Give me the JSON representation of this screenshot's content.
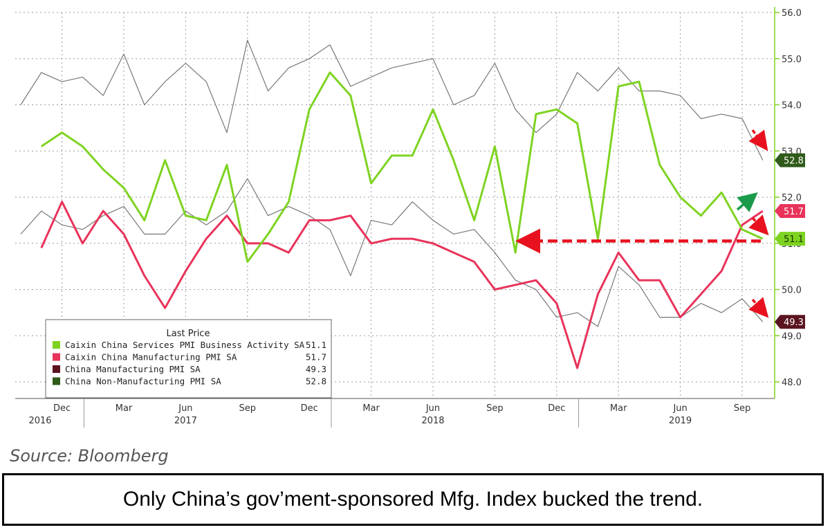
{
  "chart_data": {
    "type": "line",
    "title": "",
    "x": [
      "2016-10",
      "2016-11",
      "2016-12",
      "2017-01",
      "2017-02",
      "2017-03",
      "2017-04",
      "2017-05",
      "2017-06",
      "2017-07",
      "2017-08",
      "2017-09",
      "2017-10",
      "2017-11",
      "2017-12",
      "2018-01",
      "2018-02",
      "2018-03",
      "2018-04",
      "2018-05",
      "2018-06",
      "2018-07",
      "2018-08",
      "2018-09",
      "2018-10",
      "2018-11",
      "2018-12",
      "2019-01",
      "2019-02",
      "2019-03",
      "2019-04",
      "2019-05",
      "2019-06",
      "2019-07",
      "2019-08",
      "2019-09",
      "2019-10"
    ],
    "x_tick_labels": [
      {
        "month": "Dec",
        "year": "2016",
        "index": 2
      },
      {
        "month": "Mar",
        "year": "",
        "index": 5
      },
      {
        "month": "Jun",
        "year": "2017",
        "index": 8
      },
      {
        "month": "Sep",
        "year": "",
        "index": 11
      },
      {
        "month": "Dec",
        "year": "",
        "index": 14
      },
      {
        "month": "Mar",
        "year": "",
        "index": 17
      },
      {
        "month": "Jun",
        "year": "2018",
        "index": 20
      },
      {
        "month": "Sep",
        "year": "",
        "index": 23
      },
      {
        "month": "Dec",
        "year": "",
        "index": 26
      },
      {
        "month": "Mar",
        "year": "",
        "index": 29
      },
      {
        "month": "Jun",
        "year": "2019",
        "index": 32
      },
      {
        "month": "Sep",
        "year": "",
        "index": 35
      }
    ],
    "year_start_labels": [
      {
        "label": "2016",
        "index": 0.0
      }
    ],
    "y_ticks": [
      "48.0",
      "49.0",
      "50.0",
      "51.0",
      "52.0",
      "53.0",
      "54.0",
      "55.0",
      "56.0"
    ],
    "ylim": [
      47.6,
      56.05
    ],
    "grid": true,
    "legend_placement": "bottom-left",
    "legend_title": "Last Price",
    "series": [
      {
        "name": "Caixin China Services PMI Business Activity SA",
        "last": "51.1",
        "color": "#7ed321",
        "values": [
          null,
          53.1,
          53.4,
          53.1,
          52.6,
          52.2,
          51.5,
          52.8,
          51.6,
          51.5,
          52.7,
          50.6,
          51.2,
          51.9,
          53.9,
          54.7,
          54.2,
          52.3,
          52.9,
          52.9,
          53.9,
          52.8,
          51.5,
          53.1,
          50.8,
          53.8,
          53.9,
          53.6,
          51.1,
          54.4,
          54.5,
          52.7,
          52.0,
          51.6,
          52.1,
          51.3,
          51.1
        ]
      },
      {
        "name": "Caixin China Manufacturing PMI SA",
        "last": "51.7",
        "color": "#e8335a",
        "values": [
          null,
          50.9,
          51.9,
          51.0,
          51.7,
          51.2,
          50.3,
          49.6,
          50.4,
          51.1,
          51.6,
          51.0,
          51.0,
          50.8,
          51.5,
          51.5,
          51.6,
          51.0,
          51.1,
          51.1,
          51.0,
          50.8,
          50.6,
          50.0,
          50.1,
          50.2,
          49.7,
          48.3,
          49.9,
          50.8,
          50.2,
          50.2,
          49.4,
          49.9,
          50.4,
          51.4,
          51.7
        ]
      },
      {
        "name": "China Manufacturing PMI SA",
        "last": "49.3",
        "color": "#5a1420",
        "values": [
          51.2,
          51.7,
          51.4,
          51.3,
          51.6,
          51.8,
          51.2,
          51.2,
          51.7,
          51.4,
          51.7,
          52.4,
          51.6,
          51.8,
          51.6,
          51.3,
          50.3,
          51.5,
          51.4,
          51.9,
          51.5,
          51.2,
          51.3,
          50.8,
          50.2,
          50.0,
          49.4,
          49.5,
          49.2,
          50.5,
          50.1,
          49.4,
          49.4,
          49.7,
          49.5,
          49.8,
          49.3
        ]
      },
      {
        "name": "China Non-Manufacturing PMI SA",
        "last": "52.8",
        "color": "#2f5a1a",
        "values": [
          54.0,
          54.7,
          54.5,
          54.6,
          54.2,
          55.1,
          54.0,
          54.5,
          54.9,
          54.5,
          53.4,
          55.4,
          54.3,
          54.8,
          55.0,
          55.3,
          54.4,
          54.6,
          54.8,
          54.9,
          55.0,
          54.0,
          54.2,
          54.9,
          53.9,
          53.4,
          53.8,
          54.7,
          54.3,
          54.8,
          54.3,
          54.3,
          54.2,
          53.7,
          53.8,
          53.7,
          52.8
        ]
      }
    ],
    "annotations": {
      "dashed_arrow_level": 51.05
    }
  },
  "source": "Source: Bloomberg",
  "caption": "Only China’s gov’ment-sponsored Mfg. Index bucked the trend."
}
